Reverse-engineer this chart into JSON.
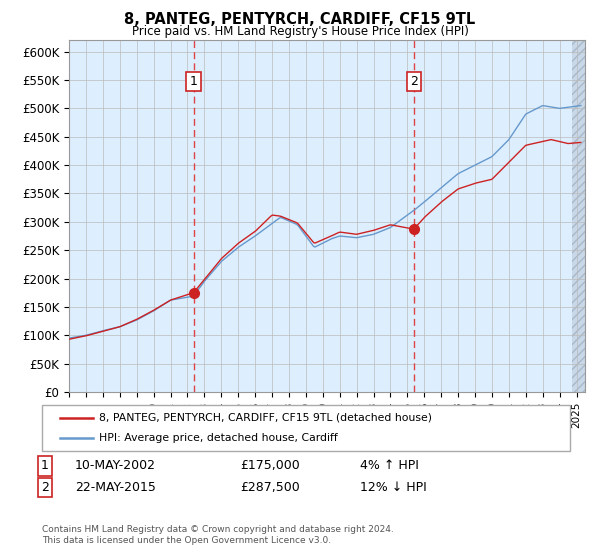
{
  "title": "8, PANTEG, PENTYRCH, CARDIFF, CF15 9TL",
  "subtitle": "Price paid vs. HM Land Registry's House Price Index (HPI)",
  "legend_line1": "8, PANTEG, PENTYRCH, CARDIFF, CF15 9TL (detached house)",
  "legend_line2": "HPI: Average price, detached house, Cardiff",
  "annotation1_date": "10-MAY-2002",
  "annotation1_price": "£175,000",
  "annotation1_pct": "4% ↑ HPI",
  "annotation2_date": "22-MAY-2015",
  "annotation2_price": "£287,500",
  "annotation2_pct": "12% ↓ HPI",
  "footer": "Contains HM Land Registry data © Crown copyright and database right 2024.\nThis data is licensed under the Open Government Licence v3.0.",
  "hpi_color": "#6699cc",
  "property_color": "#cc2222",
  "marker_color": "#cc2222",
  "bg_color": "#ddeeff",
  "grid_color": "#bbbbbb",
  "vline_color": "#dd4444",
  "ylim": [
    0,
    620000
  ],
  "yticks": [
    0,
    50000,
    100000,
    150000,
    200000,
    250000,
    300000,
    350000,
    400000,
    450000,
    500000,
    550000,
    600000
  ],
  "ytick_labels": [
    "£0",
    "£50K",
    "£100K",
    "£150K",
    "£200K",
    "£250K",
    "£300K",
    "£350K",
    "£400K",
    "£450K",
    "£500K",
    "£550K",
    "£600K"
  ],
  "xmin": 1995.0,
  "xmax": 2025.5,
  "sale1_x": 2002.36,
  "sale1_y": 175000,
  "sale2_x": 2015.38,
  "sale2_y": 287500,
  "hatch_x_start": 2024.75
}
